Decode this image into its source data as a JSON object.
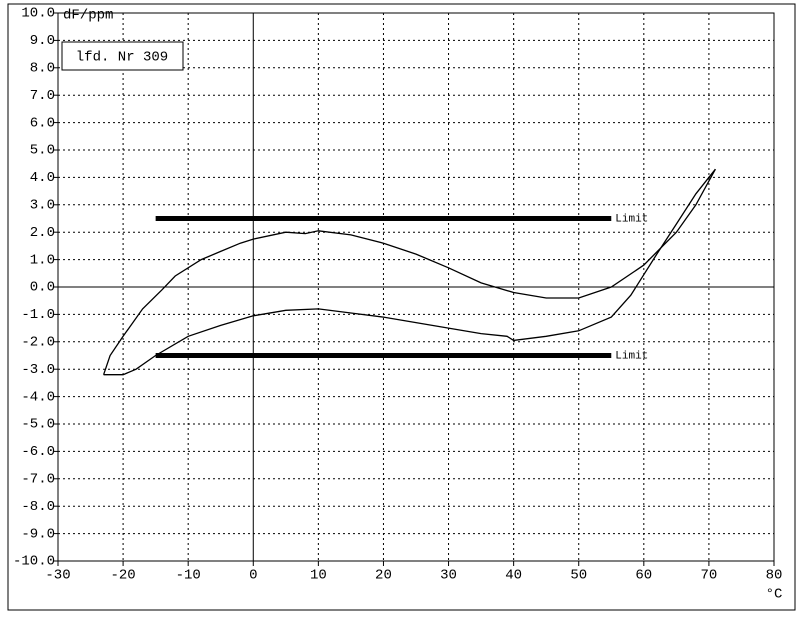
{
  "chart_data": {
    "type": "line",
    "y_label": "dF/ppm",
    "x_label": "°C",
    "annotation": "lfd. Nr 309",
    "xlim": [
      -30,
      80
    ],
    "xticks": [
      -30,
      -20,
      -10,
      0,
      10,
      20,
      30,
      40,
      50,
      60,
      70,
      80
    ],
    "ylim": [
      -10,
      10
    ],
    "yticks": [
      {
        "value": -10,
        "label": "-10.0"
      },
      {
        "value": -9,
        "label": "-9.0"
      },
      {
        "value": -8,
        "label": "-8.0"
      },
      {
        "value": -7,
        "label": "-7.0"
      },
      {
        "value": -6,
        "label": "-6.0"
      },
      {
        "value": -5,
        "label": "-5.0"
      },
      {
        "value": -4,
        "label": "-4.0"
      },
      {
        "value": -3,
        "label": "-3.0"
      },
      {
        "value": -2,
        "label": "-2.0"
      },
      {
        "value": -1,
        "label": "-1.0"
      },
      {
        "value": 0,
        "label": "0.0"
      },
      {
        "value": 1,
        "label": "1.0"
      },
      {
        "value": 2,
        "label": "2.0"
      },
      {
        "value": 3,
        "label": "3.0"
      },
      {
        "value": 4,
        "label": "4.0"
      },
      {
        "value": 5,
        "label": "5.0"
      },
      {
        "value": 6,
        "label": "6.0"
      },
      {
        "value": 7,
        "label": "7.0"
      },
      {
        "value": 8,
        "label": "8.0"
      },
      {
        "value": 9,
        "label": "9.0"
      },
      {
        "value": 10,
        "label": "10.0"
      }
    ],
    "grid": true,
    "limits": [
      {
        "label": "Limit",
        "value": 2.5,
        "x": [
          -15,
          55
        ]
      },
      {
        "label": "Limit",
        "value": -2.5,
        "x": [
          -15,
          55
        ]
      }
    ],
    "series": [
      {
        "color": "#000000",
        "x": [
          -23,
          -22,
          -20,
          -17,
          -14,
          -12,
          -8,
          -5,
          -2,
          0,
          5,
          8,
          10,
          15,
          20,
          25,
          30,
          35,
          40,
          45,
          50,
          55,
          60,
          65,
          68,
          71
        ],
        "values": [
          -3.2,
          -2.5,
          -1.8,
          -0.8,
          -0.1,
          0.4,
          1.0,
          1.3,
          1.6,
          1.75,
          2.0,
          1.95,
          2.05,
          1.9,
          1.6,
          1.2,
          0.7,
          0.15,
          -0.2,
          -0.4,
          -0.4,
          0.0,
          0.8,
          2.0,
          3.0,
          4.3
        ]
      },
      {
        "color": "#000000",
        "x": [
          71,
          68,
          65,
          62,
          58,
          55,
          50,
          45,
          40,
          39,
          35,
          30,
          25,
          20,
          15,
          10,
          5,
          0,
          -5,
          -10,
          -15,
          -18,
          -20,
          -23
        ],
        "values": [
          4.3,
          3.4,
          2.3,
          1.2,
          -0.3,
          -1.1,
          -1.6,
          -1.8,
          -1.95,
          -1.8,
          -1.7,
          -1.5,
          -1.3,
          -1.1,
          -0.95,
          -0.8,
          -0.85,
          -1.05,
          -1.4,
          -1.8,
          -2.5,
          -3.0,
          -3.2,
          -3.2
        ]
      }
    ]
  }
}
